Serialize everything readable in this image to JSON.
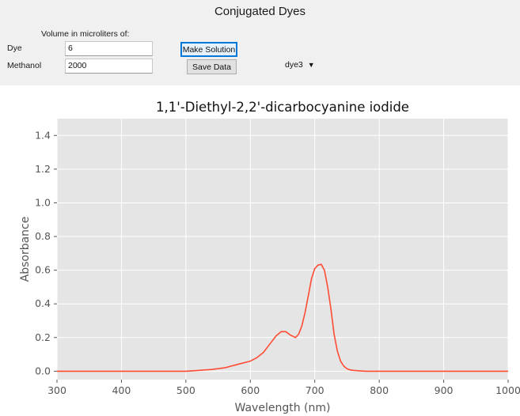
{
  "app": {
    "title": "Conjugated Dyes"
  },
  "controls": {
    "section_label": "Volume in microliters of:",
    "dye_label": "Dye",
    "dye_value": "6",
    "methanol_label": "Methanol",
    "methanol_value": "2000",
    "make_solution_label": "Make Solution",
    "save_data_label": "Save Data",
    "dye_select_value": "dye3",
    "dropdown_icon": "chevron-down-icon"
  },
  "colors": {
    "plot_background": "#e5e5e5",
    "grid": "#ffffff",
    "line": "#ff4c33"
  },
  "chart_data": {
    "type": "line",
    "title": "1,1'-Diethyl-2,2'-dicarbocyanine iodide",
    "xlabel": "Wavelength (nm)",
    "ylabel": "Absorbance",
    "xlim": [
      300,
      1000
    ],
    "ylim": [
      -0.05,
      1.5
    ],
    "xticks": [
      300,
      400,
      500,
      600,
      700,
      800,
      900,
      1000
    ],
    "yticks": [
      0.0,
      0.2,
      0.4,
      0.6,
      0.8,
      1.0,
      1.2,
      1.4
    ],
    "ytick_labels": [
      "0.0",
      "0.2",
      "0.4",
      "0.6",
      "0.8",
      "1.0",
      "1.2",
      "1.4"
    ],
    "grid": true,
    "series": [
      {
        "x": [
          300,
          350,
          400,
          450,
          500,
          540,
          560,
          580,
          600,
          610,
          620,
          630,
          640,
          648,
          655,
          662,
          670,
          675,
          680,
          685,
          690,
          695,
          700,
          705,
          710,
          715,
          720,
          725,
          730,
          735,
          740,
          745,
          750,
          755,
          760,
          770,
          780,
          800,
          850,
          900,
          950,
          1000
        ],
        "y": [
          0.0,
          0.0,
          0.0,
          0.0,
          0.0,
          0.01,
          0.02,
          0.04,
          0.06,
          0.08,
          0.11,
          0.16,
          0.21,
          0.235,
          0.235,
          0.215,
          0.2,
          0.22,
          0.27,
          0.35,
          0.45,
          0.55,
          0.61,
          0.63,
          0.635,
          0.6,
          0.5,
          0.37,
          0.22,
          0.12,
          0.06,
          0.03,
          0.015,
          0.008,
          0.005,
          0.002,
          0.0,
          0.0,
          0.0,
          0.0,
          0.0,
          0.0
        ]
      }
    ]
  }
}
